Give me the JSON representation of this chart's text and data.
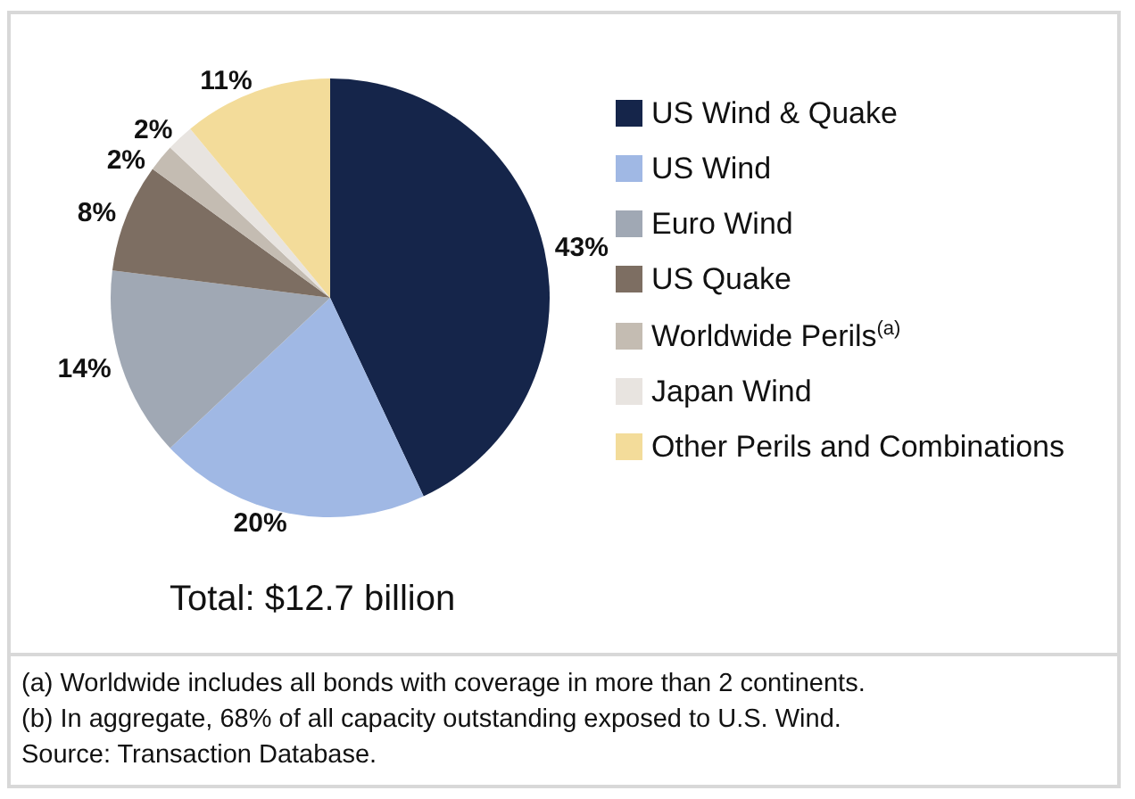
{
  "chart_data": {
    "type": "pie",
    "categories": [
      "US Wind & Quake",
      "US Wind",
      "Euro Wind",
      "US Quake",
      "Worldwide Perils$^{(a)}$",
      "Japan Wind",
      "Other Perils and Combinations"
    ],
    "values": [
      43,
      20,
      14,
      8,
      2,
      2,
      11
    ],
    "colors": [
      "#15254a",
      "#a0b8e4",
      "#a0a8b4",
      "#7d6e62",
      "#c4bcb2",
      "#e8e4e0",
      "#f3dc9a"
    ],
    "value_labels": [
      "43%",
      "20%",
      "14%",
      "8%",
      "2%",
      "2%",
      "11%"
    ],
    "legend": "right",
    "annotations": [
      "Total: $12.7 billion",
      "(a) Worldwide includes all bonds with coverage in more than 2 continents.",
      "(b) In aggregate, 68% of all capacity outstanding exposed to U.S. Wind.",
      "Source: Transaction Database."
    ]
  }
}
